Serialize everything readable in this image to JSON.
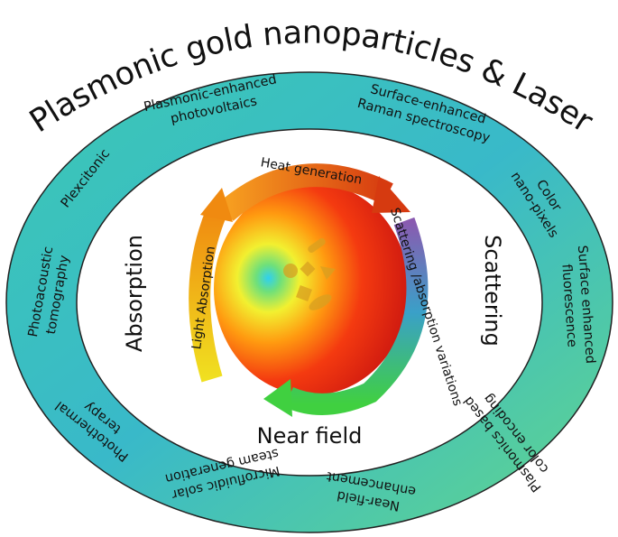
{
  "title": "Plasmonic gold nanoparticles & Laser",
  "ring_labels": [
    {
      "lines": [
        "Plasmonic-enhanced",
        "photovoltaics"
      ]
    },
    {
      "lines": [
        "Surface-enhanced",
        "Raman spectroscopy"
      ]
    },
    {
      "lines": [
        "Color",
        "nano-pixels"
      ]
    },
    {
      "lines": [
        "Surface enhanced",
        "fluorescence"
      ]
    },
    {
      "lines": [
        "Plasmonics based",
        "color encoding"
      ]
    },
    {
      "lines": [
        "Near-field",
        "enhancement"
      ]
    },
    {
      "lines": [
        "Microfluidic solar",
        "steam generation"
      ]
    },
    {
      "lines": [
        "Photothermal",
        "terapy"
      ]
    },
    {
      "lines": [
        "Photoacoustic",
        "tomography"
      ]
    },
    {
      "lines": [
        "Plexcitonic"
      ]
    }
  ],
  "axes": {
    "absorption": "Absorption",
    "scattering": "Scattering",
    "near_field": "Near field"
  },
  "cycle": {
    "heat": "Heat generation",
    "scattering": "Scattering /absorption variations",
    "light": "Light Absorption"
  }
}
